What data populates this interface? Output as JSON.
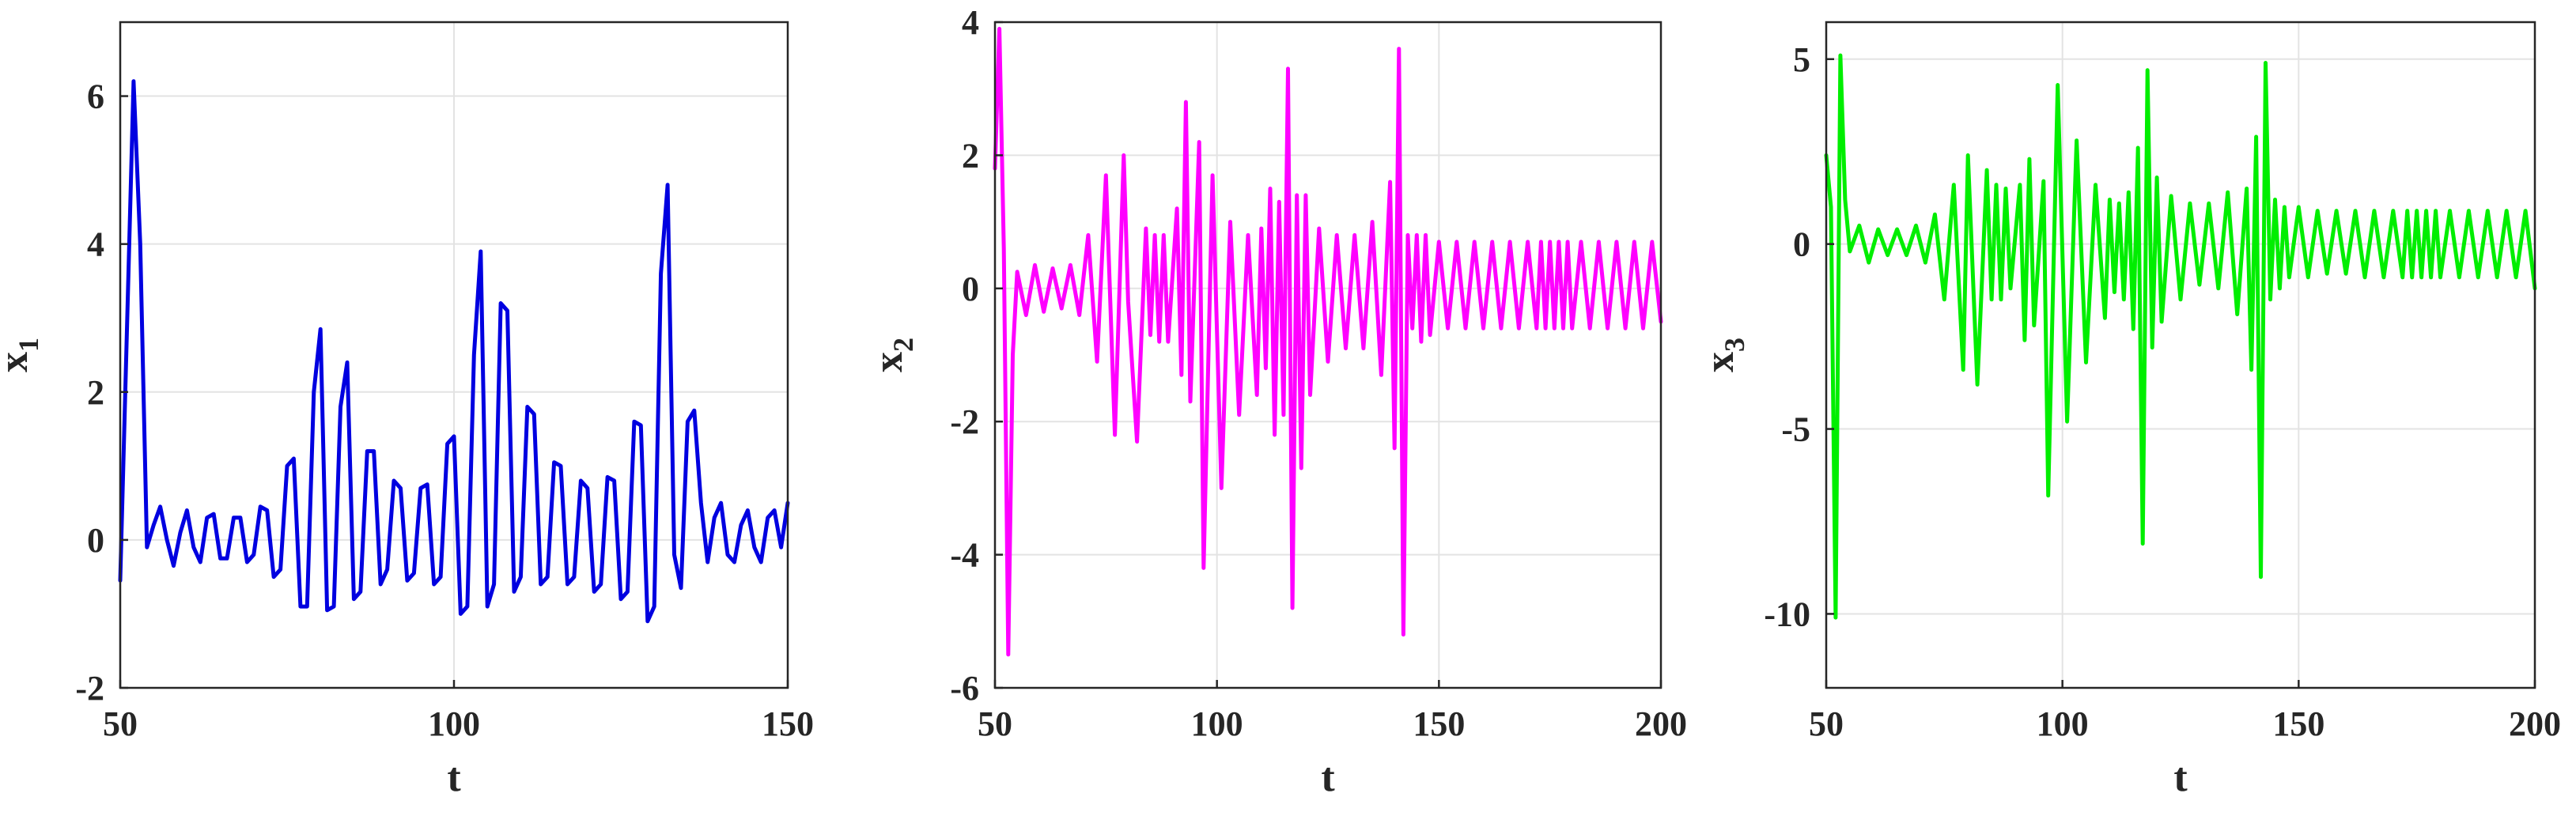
{
  "chart_data": [
    {
      "type": "line",
      "xlabel": "t",
      "ylabel": "x",
      "ylabel_sub": "1",
      "xlim": [
        50,
        150
      ],
      "ylim": [
        -2,
        7
      ],
      "xticks": [
        50,
        100,
        150
      ],
      "yticks": [
        -2,
        0,
        2,
        4,
        6
      ],
      "ytick_labels": [
        "-2",
        "0",
        "2",
        "4",
        "6"
      ],
      "grid": true,
      "color": "#0000e0",
      "series": [
        {
          "x": [
            50,
            51,
            52,
            53,
            54,
            55,
            56,
            57,
            58,
            59,
            60,
            61,
            62,
            63,
            64,
            65,
            66,
            67,
            68,
            69,
            70,
            71,
            72,
            73,
            74,
            75,
            76,
            77,
            78,
            79,
            80,
            81,
            82,
            83,
            84,
            85,
            86,
            87,
            88,
            89,
            90,
            91,
            92,
            93,
            94,
            95,
            96,
            97,
            98,
            99,
            100,
            101,
            102,
            103,
            104,
            105,
            106,
            107,
            108,
            109,
            110,
            111,
            112,
            113,
            114,
            115,
            116,
            117,
            118,
            119,
            120,
            121,
            122,
            123,
            124,
            125,
            126,
            127,
            128,
            129,
            130,
            131,
            132,
            133,
            134,
            135,
            136,
            137,
            138,
            139,
            140,
            141,
            142,
            143,
            144,
            145,
            146,
            147,
            148,
            149,
            150
          ],
          "y": [
            -0.55,
            2.8,
            6.2,
            4.0,
            -0.1,
            0.2,
            0.45,
            0.0,
            -0.35,
            0.1,
            0.4,
            -0.1,
            -0.3,
            0.3,
            0.35,
            -0.25,
            -0.25,
            0.3,
            0.3,
            -0.3,
            -0.2,
            0.45,
            0.4,
            -0.5,
            -0.4,
            1.0,
            1.1,
            -0.9,
            -0.9,
            2.0,
            2.85,
            -0.95,
            -0.9,
            1.8,
            2.4,
            -0.8,
            -0.7,
            1.2,
            1.2,
            -0.6,
            -0.4,
            0.8,
            0.7,
            -0.55,
            -0.45,
            0.7,
            0.75,
            -0.6,
            -0.5,
            1.3,
            1.4,
            -1.0,
            -0.9,
            2.5,
            3.9,
            -0.9,
            -0.6,
            3.2,
            3.1,
            -0.7,
            -0.5,
            1.8,
            1.7,
            -0.6,
            -0.5,
            1.05,
            1.0,
            -0.6,
            -0.5,
            0.8,
            0.7,
            -0.7,
            -0.6,
            0.85,
            0.8,
            -0.8,
            -0.7,
            1.6,
            1.55,
            -1.1,
            -0.9,
            3.6,
            4.8,
            -0.2,
            -0.65,
            1.6,
            1.75,
            0.5,
            -0.3,
            0.3,
            0.5,
            -0.2,
            -0.3,
            0.2,
            0.4,
            -0.1,
            -0.3,
            0.3,
            0.4,
            -0.1,
            0.5
          ]
        }
      ]
    },
    {
      "type": "line",
      "xlabel": "t",
      "ylabel": "x",
      "ylabel_sub": "2",
      "xlim": [
        50,
        200
      ],
      "ylim": [
        -6,
        4
      ],
      "xticks": [
        50,
        100,
        150,
        200
      ],
      "yticks": [
        -6,
        -4,
        -2,
        0,
        2,
        4
      ],
      "ytick_labels": [
        "-6",
        "-4",
        "-2",
        "0",
        "2",
        "4"
      ],
      "grid": true,
      "color": "#ff00ff",
      "series": [
        {
          "x": [
            50,
            51,
            52,
            53,
            54,
            55,
            57,
            59,
            61,
            63,
            65,
            67,
            69,
            71,
            73,
            75,
            77,
            79,
            80,
            82,
            84,
            85,
            86,
            87,
            88,
            89,
            91,
            92,
            93,
            94,
            96,
            97,
            99,
            101,
            103,
            105,
            107,
            109,
            110,
            111,
            112,
            113,
            114,
            115,
            116,
            117,
            118,
            119,
            120,
            121,
            123,
            125,
            127,
            129,
            131,
            133,
            135,
            137,
            139,
            140,
            141,
            142,
            143,
            144,
            145,
            146,
            147,
            148,
            150,
            152,
            154,
            156,
            158,
            160,
            162,
            164,
            166,
            168,
            170,
            172,
            173,
            174,
            175,
            176,
            177,
            178,
            179,
            180,
            182,
            184,
            186,
            188,
            190,
            192,
            194,
            196,
            198,
            200
          ],
          "y": [
            1.8,
            3.9,
            0.6,
            -5.5,
            -1.0,
            0.25,
            -0.4,
            0.35,
            -0.35,
            0.3,
            -0.3,
            0.35,
            -0.4,
            0.8,
            -1.1,
            1.7,
            -2.2,
            2.0,
            -0.2,
            -2.3,
            0.9,
            -0.7,
            0.8,
            -0.8,
            0.8,
            -0.8,
            1.2,
            -1.3,
            2.8,
            -1.7,
            2.2,
            -4.2,
            1.7,
            -3.0,
            1.0,
            -1.9,
            0.8,
            -1.6,
            0.9,
            -1.2,
            1.5,
            -2.2,
            1.3,
            -1.9,
            3.3,
            -4.8,
            1.4,
            -2.7,
            1.4,
            -1.6,
            0.9,
            -1.1,
            0.8,
            -0.9,
            0.8,
            -0.9,
            1.0,
            -1.3,
            1.6,
            -2.4,
            3.6,
            -5.2,
            0.8,
            -0.6,
            0.8,
            -0.8,
            0.8,
            -0.7,
            0.7,
            -0.6,
            0.7,
            -0.6,
            0.7,
            -0.6,
            0.7,
            -0.6,
            0.7,
            -0.6,
            0.7,
            -0.6,
            0.7,
            -0.6,
            0.7,
            -0.6,
            0.7,
            -0.6,
            0.7,
            -0.6,
            0.7,
            -0.6,
            0.7,
            -0.6,
            0.7,
            -0.6,
            0.7,
            -0.6,
            0.7,
            -0.5
          ]
        }
      ]
    },
    {
      "type": "line",
      "xlabel": "t",
      "ylabel": "x",
      "ylabel_sub": "3",
      "xlim": [
        50,
        200
      ],
      "ylim": [
        -12,
        6
      ],
      "xticks": [
        50,
        100,
        150,
        200
      ],
      "yticks": [
        -10,
        -5,
        0,
        5
      ],
      "ytick_labels": [
        "-10",
        "-5",
        "0",
        "5"
      ],
      "grid": true,
      "color": "#00ee00",
      "series": [
        {
          "x": [
            50,
            51,
            52,
            53,
            54,
            55,
            57,
            59,
            61,
            63,
            65,
            67,
            69,
            71,
            73,
            75,
            77,
            79,
            80,
            82,
            84,
            85,
            86,
            87,
            88,
            89,
            91,
            92,
            93,
            94,
            96,
            97,
            99,
            101,
            103,
            105,
            107,
            109,
            110,
            111,
            112,
            113,
            114,
            115,
            116,
            117,
            118,
            119,
            120,
            121,
            123,
            125,
            127,
            129,
            131,
            133,
            135,
            137,
            139,
            140,
            141,
            142,
            143,
            144,
            145,
            146,
            147,
            148,
            150,
            152,
            154,
            156,
            158,
            160,
            162,
            164,
            166,
            168,
            170,
            172,
            173,
            174,
            175,
            176,
            177,
            178,
            179,
            180,
            182,
            184,
            186,
            188,
            190,
            192,
            194,
            196,
            198,
            200
          ],
          "y": [
            2.4,
            1.0,
            -10.1,
            5.1,
            1.2,
            -0.2,
            0.5,
            -0.5,
            0.4,
            -0.3,
            0.4,
            -0.3,
            0.5,
            -0.5,
            0.8,
            -1.5,
            1.6,
            -3.4,
            2.4,
            -3.8,
            2.0,
            -1.5,
            1.6,
            -1.5,
            1.5,
            -1.2,
            1.6,
            -2.6,
            2.3,
            -2.2,
            1.7,
            -6.8,
            4.3,
            -4.8,
            2.8,
            -3.2,
            1.6,
            -2.0,
            1.2,
            -1.3,
            1.1,
            -1.5,
            1.4,
            -2.3,
            2.6,
            -8.1,
            4.7,
            -2.8,
            1.8,
            -2.1,
            1.3,
            -1.5,
            1.1,
            -1.1,
            1.1,
            -1.2,
            1.4,
            -1.9,
            1.5,
            -3.4,
            2.9,
            -9.0,
            4.9,
            -1.5,
            1.2,
            -1.2,
            1.0,
            -0.9,
            1.0,
            -0.9,
            0.9,
            -0.8,
            0.9,
            -0.8,
            0.9,
            -0.9,
            0.9,
            -0.9,
            0.9,
            -0.9,
            0.9,
            -0.9,
            0.9,
            -0.9,
            0.9,
            -0.9,
            0.9,
            -0.9,
            0.9,
            -0.9,
            0.9,
            -0.9,
            0.9,
            -0.9,
            0.9,
            -0.9,
            0.9,
            -1.2
          ]
        }
      ]
    }
  ]
}
